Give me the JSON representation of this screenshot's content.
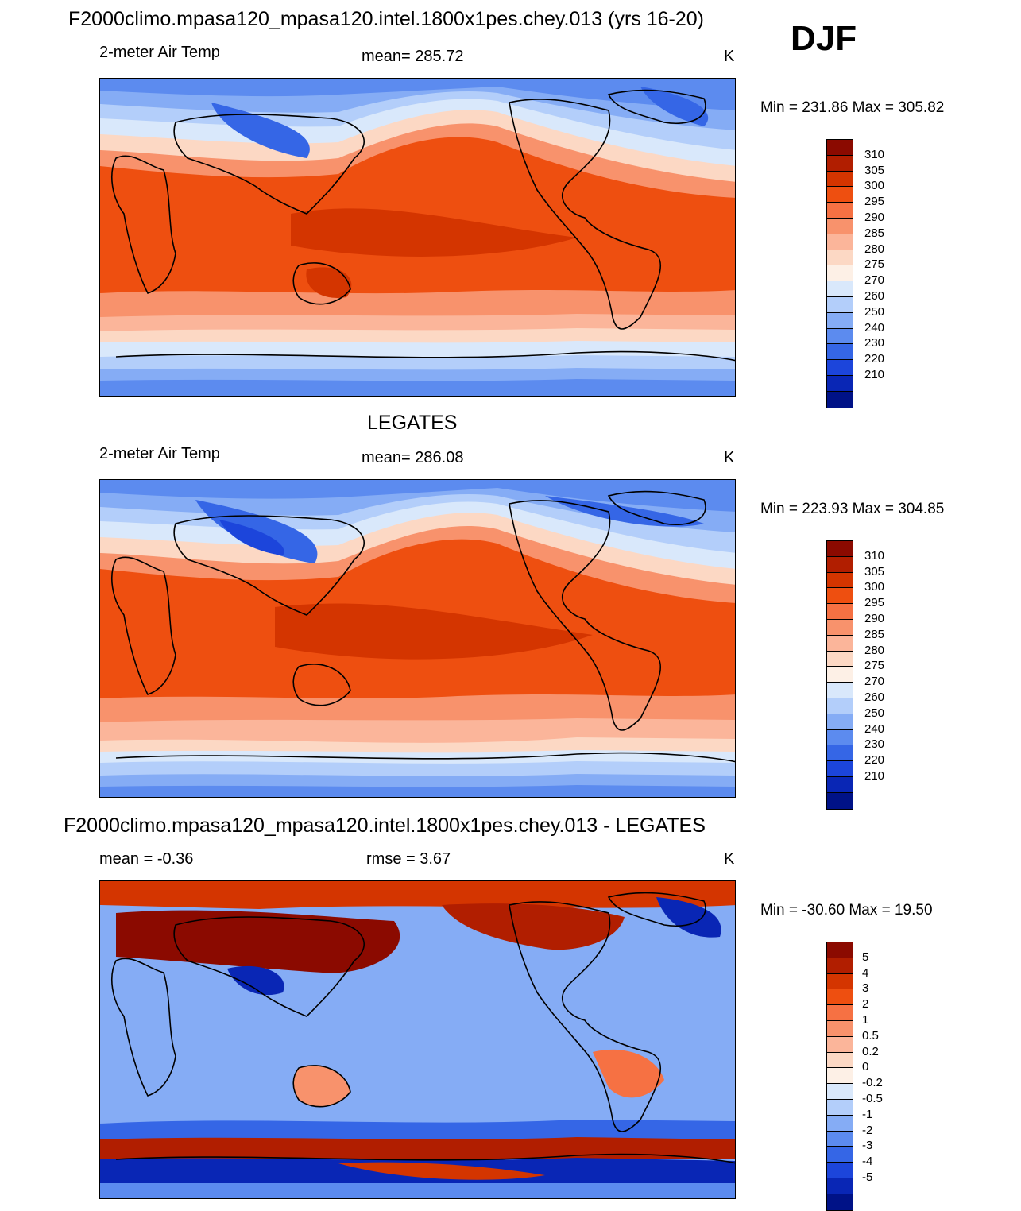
{
  "figure": {
    "season": "DJF"
  },
  "panels": [
    {
      "id": "model",
      "title": "F2000climo.mpasa120_mpasa120.intel.1800x1pes.chey.013 (yrs 16-20)",
      "left_label": "2-meter Air Temp",
      "center_label": "mean= 285.72",
      "units": "K",
      "min_max": "Min = 231.86 Max = 305.82"
    },
    {
      "id": "obs",
      "title": "LEGATES",
      "left_label": "2-meter Air Temp",
      "center_label": "mean= 286.08",
      "units": "K",
      "min_max": "Min = 223.93 Max = 304.85"
    },
    {
      "id": "diff",
      "title": "F2000climo.mpasa120_mpasa120.intel.1800x1pes.chey.013 - LEGATES",
      "left_label": "mean =  -0.36",
      "center_label": "rmse =    3.67",
      "units": "K",
      "min_max": "Min = -30.60 Max =  19.50"
    }
  ],
  "colorbars": {
    "absolute": {
      "ticks": [
        "310",
        "305",
        "300",
        "295",
        "290",
        "285",
        "280",
        "275",
        "270",
        "260",
        "250",
        "240",
        "230",
        "220",
        "210"
      ],
      "colors": [
        "#8b0a00",
        "#b11e00",
        "#d43500",
        "#ee4f10",
        "#f67143",
        "#f8926c",
        "#fbb59a",
        "#fcd8c4",
        "#fdf0e6",
        "#d9e8fb",
        "#b3cefa",
        "#85acf5",
        "#5c8bef",
        "#3566e6",
        "#1c45db",
        "#0926b5",
        "#001287"
      ]
    },
    "difference": {
      "ticks": [
        "5",
        "4",
        "3",
        "2",
        "1",
        "0.5",
        "0.2",
        "0",
        "-0.2",
        "-0.5",
        "-1",
        "-2",
        "-3",
        "-4",
        "-5"
      ],
      "colors": [
        "#8b0a00",
        "#b11e00",
        "#d43500",
        "#ee4f10",
        "#f67143",
        "#f8926c",
        "#fbb59a",
        "#fcd8c4",
        "#fdf0e6",
        "#d9e8fb",
        "#b3cefa",
        "#85acf5",
        "#5c8bef",
        "#3566e6",
        "#1c45db",
        "#0926b5",
        "#001287"
      ]
    }
  }
}
